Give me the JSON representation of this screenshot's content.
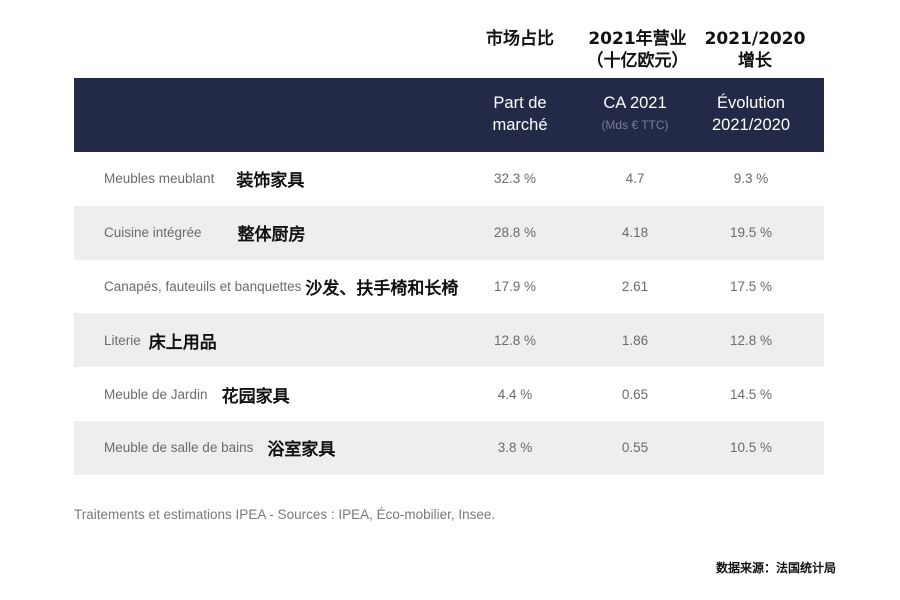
{
  "cn_headers": {
    "market_share": "市场占比",
    "revenue_line1": "2021年营业",
    "revenue_line2": "（十亿欧元）",
    "growth_line1": "2021/2020",
    "growth_line2": "增长"
  },
  "table": {
    "headers": {
      "market_share_line1": "Part de",
      "market_share_line2": "marché",
      "revenue_line1": "CA 2021",
      "revenue_sub": "(Mds € TTC)",
      "growth_line1": "Évolution",
      "growth_line2": "2021/2020"
    },
    "header_bg": "#232a48",
    "rows": [
      {
        "fr": "Meubles meublant",
        "cn": "装饰家具",
        "gap": 22,
        "share": "32.3 %",
        "revenue": "4.7",
        "growth": "9.3 %"
      },
      {
        "fr": "Cuisine intégrée",
        "cn": "整体厨房",
        "gap": 36,
        "share": "28.8 %",
        "revenue": "4.18",
        "growth": "19.5 %"
      },
      {
        "fr": "Canapés, fauteuils et banquettes",
        "cn": "沙发、扶手椅和长椅",
        "gap": 4,
        "share": "17.9 %",
        "revenue": "2.61",
        "growth": "17.5 %"
      },
      {
        "fr": "Literie",
        "cn": "床上用品",
        "gap": 8,
        "share": "12.8 %",
        "revenue": "1.86",
        "growth": "12.8 %"
      },
      {
        "fr": "Meuble de Jardin",
        "cn": "花园家具",
        "gap": 14,
        "share": "4.4 %",
        "revenue": "0.65",
        "growth": "14.5 %"
      },
      {
        "fr": "Meuble de salle de bains",
        "cn": "浴室家具",
        "gap": 14,
        "share": "3.8 %",
        "revenue": "0.55",
        "growth": "10.5 %"
      }
    ]
  },
  "source_note": "Traitements et estimations IPEA - Sources : IPEA, Éco-mobilier, Insee.",
  "cn_source": "数据来源：法国统计局"
}
